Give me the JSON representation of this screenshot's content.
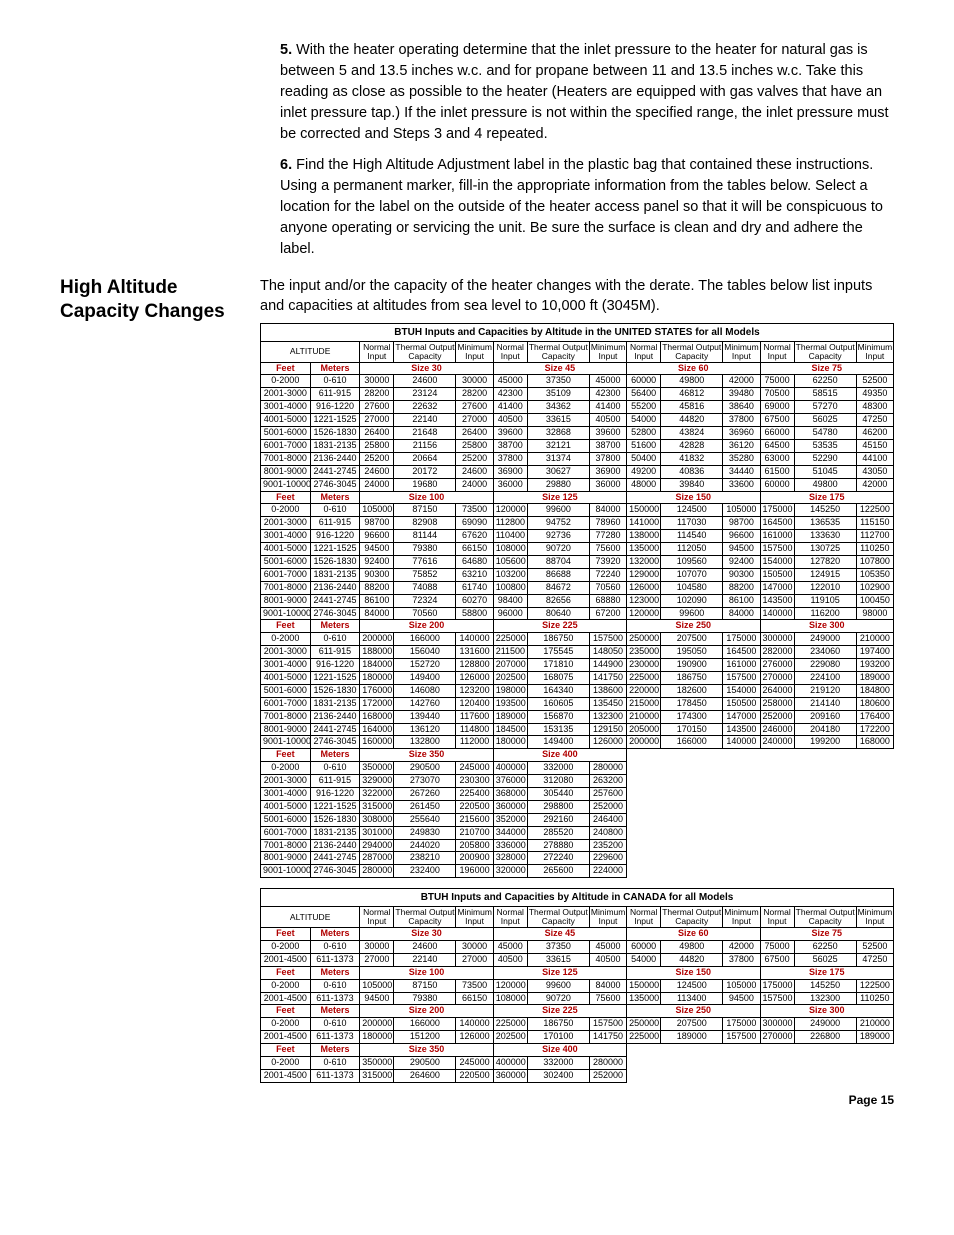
{
  "steps": [
    {
      "n": "5.",
      "text": "With the heater operating determine that the inlet pressure to the heater for natural gas is between 5 and 13.5 inches w.c. and for propane between 11 and 13.5 inches w.c. Take this reading as close as possible to the heater (Heaters are equipped with gas valves that have an inlet pressure tap.) If the inlet pressure is not within the specified range, the inlet pressure must be corrected and Steps 3 and 4 repeated."
    },
    {
      "n": "6.",
      "text": "Find the High Altitude Adjustment label in the plastic bag that contained these instructions. Using a permanent marker, fill-in the appropriate information from the tables below. Select a location for the label on the outside of the heater access panel so that it will be conspicuous to anyone operating or servicing the unit. Be sure the surface is clean and dry and adhere the label."
    }
  ],
  "section_title_1": "High Altitude",
  "section_title_2": "Capacity Changes",
  "intro": "The input and/or the capacity of the heater changes with the derate. The tables below list inputs and capacities at altitudes from sea level to 10,000 ft (3045M).",
  "page": "Page 15",
  "colors": {
    "red": "#b00000"
  },
  "us": {
    "title": "BTUH Inputs and Capacities by Altitude in the UNITED STATES for all Models",
    "alt_label": "ALTITUDE",
    "col_labels": [
      "Normal Input",
      "Thermal Output Capacity",
      "Minimum Input"
    ],
    "feet": "Feet",
    "meters": "Meters",
    "groups": [
      {
        "sizes": [
          "Size 30",
          "Size 45",
          "Size 60",
          "Size 75"
        ],
        "rows": [
          [
            "0-2000",
            "0-610",
            "30000",
            "24600",
            "30000",
            "45000",
            "37350",
            "45000",
            "60000",
            "49800",
            "42000",
            "75000",
            "62250",
            "52500"
          ],
          [
            "2001-3000",
            "611-915",
            "28200",
            "23124",
            "28200",
            "42300",
            "35109",
            "42300",
            "56400",
            "46812",
            "39480",
            "70500",
            "58515",
            "49350"
          ],
          [
            "3001-4000",
            "916-1220",
            "27600",
            "22632",
            "27600",
            "41400",
            "34362",
            "41400",
            "55200",
            "45816",
            "38640",
            "69000",
            "57270",
            "48300"
          ],
          [
            "4001-5000",
            "1221-1525",
            "27000",
            "22140",
            "27000",
            "40500",
            "33615",
            "40500",
            "54000",
            "44820",
            "37800",
            "67500",
            "56025",
            "47250"
          ],
          [
            "5001-6000",
            "1526-1830",
            "26400",
            "21648",
            "26400",
            "39600",
            "32868",
            "39600",
            "52800",
            "43824",
            "36960",
            "66000",
            "54780",
            "46200"
          ],
          [
            "6001-7000",
            "1831-2135",
            "25800",
            "21156",
            "25800",
            "38700",
            "32121",
            "38700",
            "51600",
            "42828",
            "36120",
            "64500",
            "53535",
            "45150"
          ],
          [
            "7001-8000",
            "2136-2440",
            "25200",
            "20664",
            "25200",
            "37800",
            "31374",
            "37800",
            "50400",
            "41832",
            "35280",
            "63000",
            "52290",
            "44100"
          ],
          [
            "8001-9000",
            "2441-2745",
            "24600",
            "20172",
            "24600",
            "36900",
            "30627",
            "36900",
            "49200",
            "40836",
            "34440",
            "61500",
            "51045",
            "43050"
          ],
          [
            "9001-10000",
            "2746-3045",
            "24000",
            "19680",
            "24000",
            "36000",
            "29880",
            "36000",
            "48000",
            "39840",
            "33600",
            "60000",
            "49800",
            "42000"
          ]
        ]
      },
      {
        "sizes": [
          "Size 100",
          "Size 125",
          "Size 150",
          "Size 175"
        ],
        "rows": [
          [
            "0-2000",
            "0-610",
            "105000",
            "87150",
            "73500",
            "120000",
            "99600",
            "84000",
            "150000",
            "124500",
            "105000",
            "175000",
            "145250",
            "122500"
          ],
          [
            "2001-3000",
            "611-915",
            "98700",
            "82908",
            "69090",
            "112800",
            "94752",
            "78960",
            "141000",
            "117030",
            "98700",
            "164500",
            "136535",
            "115150"
          ],
          [
            "3001-4000",
            "916-1220",
            "96600",
            "81144",
            "67620",
            "110400",
            "92736",
            "77280",
            "138000",
            "114540",
            "96600",
            "161000",
            "133630",
            "112700"
          ],
          [
            "4001-5000",
            "1221-1525",
            "94500",
            "79380",
            "66150",
            "108000",
            "90720",
            "75600",
            "135000",
            "112050",
            "94500",
            "157500",
            "130725",
            "110250"
          ],
          [
            "5001-6000",
            "1526-1830",
            "92400",
            "77616",
            "64680",
            "105600",
            "88704",
            "73920",
            "132000",
            "109560",
            "92400",
            "154000",
            "127820",
            "107800"
          ],
          [
            "6001-7000",
            "1831-2135",
            "90300",
            "75852",
            "63210",
            "103200",
            "86688",
            "72240",
            "129000",
            "107070",
            "90300",
            "150500",
            "124915",
            "105350"
          ],
          [
            "7001-8000",
            "2136-2440",
            "88200",
            "74088",
            "61740",
            "100800",
            "84672",
            "70560",
            "126000",
            "104580",
            "88200",
            "147000",
            "122010",
            "102900"
          ],
          [
            "8001-9000",
            "2441-2745",
            "86100",
            "72324",
            "60270",
            "98400",
            "82656",
            "68880",
            "123000",
            "102090",
            "86100",
            "143500",
            "119105",
            "100450"
          ],
          [
            "9001-10000",
            "2746-3045",
            "84000",
            "70560",
            "58800",
            "96000",
            "80640",
            "67200",
            "120000",
            "99600",
            "84000",
            "140000",
            "116200",
            "98000"
          ]
        ]
      },
      {
        "sizes": [
          "Size 200",
          "Size 225",
          "Size 250",
          "Size 300"
        ],
        "rows": [
          [
            "0-2000",
            "0-610",
            "200000",
            "166000",
            "140000",
            "225000",
            "186750",
            "157500",
            "250000",
            "207500",
            "175000",
            "300000",
            "249000",
            "210000"
          ],
          [
            "2001-3000",
            "611-915",
            "188000",
            "156040",
            "131600",
            "211500",
            "175545",
            "148050",
            "235000",
            "195050",
            "164500",
            "282000",
            "234060",
            "197400"
          ],
          [
            "3001-4000",
            "916-1220",
            "184000",
            "152720",
            "128800",
            "207000",
            "171810",
            "144900",
            "230000",
            "190900",
            "161000",
            "276000",
            "229080",
            "193200"
          ],
          [
            "4001-5000",
            "1221-1525",
            "180000",
            "149400",
            "126000",
            "202500",
            "168075",
            "141750",
            "225000",
            "186750",
            "157500",
            "270000",
            "224100",
            "189000"
          ],
          [
            "5001-6000",
            "1526-1830",
            "176000",
            "146080",
            "123200",
            "198000",
            "164340",
            "138600",
            "220000",
            "182600",
            "154000",
            "264000",
            "219120",
            "184800"
          ],
          [
            "6001-7000",
            "1831-2135",
            "172000",
            "142760",
            "120400",
            "193500",
            "160605",
            "135450",
            "215000",
            "178450",
            "150500",
            "258000",
            "214140",
            "180600"
          ],
          [
            "7001-8000",
            "2136-2440",
            "168000",
            "139440",
            "117600",
            "189000",
            "156870",
            "132300",
            "210000",
            "174300",
            "147000",
            "252000",
            "209160",
            "176400"
          ],
          [
            "8001-9000",
            "2441-2745",
            "164000",
            "136120",
            "114800",
            "184500",
            "153135",
            "129150",
            "205000",
            "170150",
            "143500",
            "246000",
            "204180",
            "172200"
          ],
          [
            "9001-10000",
            "2746-3045",
            "160000",
            "132800",
            "112000",
            "180000",
            "149400",
            "126000",
            "200000",
            "166000",
            "140000",
            "240000",
            "199200",
            "168000"
          ]
        ]
      },
      {
        "sizes": [
          "Size 350",
          "Size 400"
        ],
        "count": 2,
        "rows": [
          [
            "0-2000",
            "0-610",
            "350000",
            "290500",
            "245000",
            "400000",
            "332000",
            "280000"
          ],
          [
            "2001-3000",
            "611-915",
            "329000",
            "273070",
            "230300",
            "376000",
            "312080",
            "263200"
          ],
          [
            "3001-4000",
            "916-1220",
            "322000",
            "267260",
            "225400",
            "368000",
            "305440",
            "257600"
          ],
          [
            "4001-5000",
            "1221-1525",
            "315000",
            "261450",
            "220500",
            "360000",
            "298800",
            "252000"
          ],
          [
            "5001-6000",
            "1526-1830",
            "308000",
            "255640",
            "215600",
            "352000",
            "292160",
            "246400"
          ],
          [
            "6001-7000",
            "1831-2135",
            "301000",
            "249830",
            "210700",
            "344000",
            "285520",
            "240800"
          ],
          [
            "7001-8000",
            "2136-2440",
            "294000",
            "244020",
            "205800",
            "336000",
            "278880",
            "235200"
          ],
          [
            "8001-9000",
            "2441-2745",
            "287000",
            "238210",
            "200900",
            "328000",
            "272240",
            "229600"
          ],
          [
            "9001-10000",
            "2746-3045",
            "280000",
            "232400",
            "196000",
            "320000",
            "265600",
            "224000"
          ]
        ]
      }
    ]
  },
  "ca": {
    "title": "BTUH Inputs and Capacities by Altitude in CANADA for all Models",
    "groups": [
      {
        "sizes": [
          "Size 30",
          "Size 45",
          "Size 60",
          "Size 75"
        ],
        "rows": [
          [
            "0-2000",
            "0-610",
            "30000",
            "24600",
            "30000",
            "45000",
            "37350",
            "45000",
            "60000",
            "49800",
            "42000",
            "75000",
            "62250",
            "52500"
          ],
          [
            "2001-4500",
            "611-1373",
            "27000",
            "22140",
            "27000",
            "40500",
            "33615",
            "40500",
            "54000",
            "44820",
            "37800",
            "67500",
            "56025",
            "47250"
          ]
        ]
      },
      {
        "sizes": [
          "Size 100",
          "Size 125",
          "Size 150",
          "Size 175"
        ],
        "rows": [
          [
            "0-2000",
            "0-610",
            "105000",
            "87150",
            "73500",
            "120000",
            "99600",
            "84000",
            "150000",
            "124500",
            "105000",
            "175000",
            "145250",
            "122500"
          ],
          [
            "2001-4500",
            "611-1373",
            "94500",
            "79380",
            "66150",
            "108000",
            "90720",
            "75600",
            "135000",
            "113400",
            "94500",
            "157500",
            "132300",
            "110250"
          ]
        ]
      },
      {
        "sizes": [
          "Size 200",
          "Size 225",
          "Size 250",
          "Size 300"
        ],
        "rows": [
          [
            "0-2000",
            "0-610",
            "200000",
            "166000",
            "140000",
            "225000",
            "186750",
            "157500",
            "250000",
            "207500",
            "175000",
            "300000",
            "249000",
            "210000"
          ],
          [
            "2001-4500",
            "611-1373",
            "180000",
            "151200",
            "126000",
            "202500",
            "170100",
            "141750",
            "225000",
            "189000",
            "157500",
            "270000",
            "226800",
            "189000"
          ]
        ]
      },
      {
        "sizes": [
          "Size 350",
          "Size 400"
        ],
        "count": 2,
        "rows": [
          [
            "0-2000",
            "0-610",
            "350000",
            "290500",
            "245000",
            "400000",
            "332000",
            "280000"
          ],
          [
            "2001-4500",
            "611-1373",
            "315000",
            "264600",
            "220500",
            "360000",
            "302400",
            "252000"
          ]
        ]
      }
    ]
  }
}
